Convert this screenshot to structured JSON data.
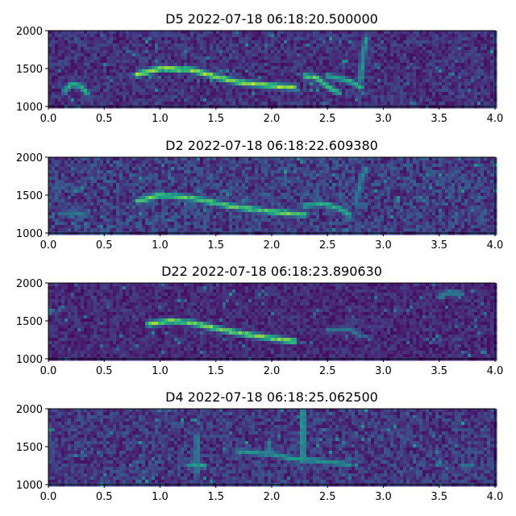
{
  "chart_data": [
    {
      "type": "heatmap",
      "title": "D5 2022-07-18 06:18:20.500000",
      "xlim": [
        0.0,
        4.0
      ],
      "ylim": [
        1000,
        2000
      ],
      "xticks": [
        "0.0",
        "0.5",
        "1.0",
        "1.5",
        "2.0",
        "2.5",
        "3.0",
        "3.5",
        "4.0"
      ],
      "yticks": [
        "1000",
        "1500",
        "2000"
      ],
      "colormap": "viridis",
      "ridges": [
        {
          "x": [
            0.15,
            0.2,
            0.28,
            0.35
          ],
          "y": [
            1200,
            1290,
            1280,
            1170
          ],
          "intensity": 0.7
        },
        {
          "x": [
            0.8,
            0.95,
            1.0,
            1.3,
            1.5,
            1.7,
            2.0,
            2.2
          ],
          "y": [
            1420,
            1480,
            1500,
            1480,
            1390,
            1320,
            1270,
            1250
          ],
          "intensity": 0.95
        },
        {
          "x": [
            2.3,
            2.4,
            2.5,
            2.6
          ],
          "y": [
            1400,
            1380,
            1260,
            1180
          ],
          "intensity": 0.8
        },
        {
          "x": [
            2.5,
            2.6,
            2.7,
            2.8
          ],
          "y": [
            1400,
            1370,
            1330,
            1250
          ],
          "intensity": 0.7
        },
        {
          "x": [
            2.8,
            2.82,
            2.85
          ],
          "y": [
            1350,
            1700,
            1900
          ],
          "intensity": 0.6
        }
      ],
      "background_level": 0.12
    },
    {
      "type": "heatmap",
      "title": "D2 2022-07-18 06:18:22.609380",
      "xlim": [
        0.0,
        4.0
      ],
      "ylim": [
        1000,
        2000
      ],
      "xticks": [
        "0.0",
        "0.5",
        "1.0",
        "1.5",
        "2.0",
        "2.5",
        "3.0",
        "3.5",
        "4.0"
      ],
      "yticks": [
        "1000",
        "1500",
        "2000"
      ],
      "colormap": "viridis",
      "ridges": [
        {
          "x": [
            0.8,
            1.0,
            1.3,
            1.6,
            2.0,
            2.3
          ],
          "y": [
            1420,
            1500,
            1460,
            1360,
            1280,
            1240
          ],
          "intensity": 0.85
        },
        {
          "x": [
            2.3,
            2.45,
            2.6,
            2.7
          ],
          "y": [
            1360,
            1390,
            1330,
            1240
          ],
          "intensity": 0.7
        },
        {
          "x": [
            2.75,
            2.8,
            2.85
          ],
          "y": [
            1400,
            1700,
            1850
          ],
          "intensity": 0.5
        },
        {
          "x": [
            0.1,
            0.2,
            0.3
          ],
          "y": [
            1250,
            1270,
            1260
          ],
          "intensity": 0.45
        }
      ],
      "background_level": 0.16
    },
    {
      "type": "heatmap",
      "title": "D22 2022-07-18 06:18:23.890630",
      "xlim": [
        0.0,
        4.0
      ],
      "ylim": [
        1000,
        2000
      ],
      "xticks": [
        "0.0",
        "0.5",
        "1.0",
        "1.5",
        "2.0",
        "2.5",
        "3.0",
        "3.5",
        "4.0"
      ],
      "yticks": [
        "1000",
        "1500",
        "2000"
      ],
      "colormap": "viridis",
      "ridges": [
        {
          "x": [
            0.9,
            1.1,
            1.3,
            1.5,
            1.7,
            2.0,
            2.2
          ],
          "y": [
            1460,
            1500,
            1470,
            1400,
            1340,
            1270,
            1230
          ],
          "intensity": 0.9
        },
        {
          "x": [
            2.5,
            2.7,
            2.8
          ],
          "y": [
            1380,
            1390,
            1300
          ],
          "intensity": 0.45
        },
        {
          "x": [
            3.5,
            3.6,
            3.7
          ],
          "y": [
            1820,
            1880,
            1860
          ],
          "intensity": 0.5
        }
      ],
      "background_level": 0.1
    },
    {
      "type": "heatmap",
      "title": "D4 2022-07-18 06:18:25.062500",
      "xlim": [
        0.0,
        4.0
      ],
      "ylim": [
        1000,
        2000
      ],
      "xticks": [
        "0.0",
        "0.5",
        "1.0",
        "1.5",
        "2.0",
        "2.5",
        "3.0",
        "3.5",
        "4.0"
      ],
      "yticks": [
        "1000",
        "1500",
        "2000"
      ],
      "colormap": "viridis",
      "ridges": [
        {
          "x": [
            1.7,
            2.0,
            2.2,
            2.5,
            2.7
          ],
          "y": [
            1440,
            1400,
            1340,
            1300,
            1260
          ],
          "intensity": 0.6
        },
        {
          "x": [
            2.28,
            2.28
          ],
          "y": [
            1300,
            2000
          ],
          "intensity": 0.65
        },
        {
          "x": [
            1.33,
            1.33
          ],
          "y": [
            1150,
            1650
          ],
          "intensity": 0.5
        },
        {
          "x": [
            1.25,
            1.35,
            1.4
          ],
          "y": [
            1250,
            1260,
            1240
          ],
          "intensity": 0.6
        },
        {
          "x": [
            3.7,
            3.8
          ],
          "y": [
            1240,
            1250
          ],
          "intensity": 0.45
        }
      ],
      "background_level": 0.14
    }
  ]
}
